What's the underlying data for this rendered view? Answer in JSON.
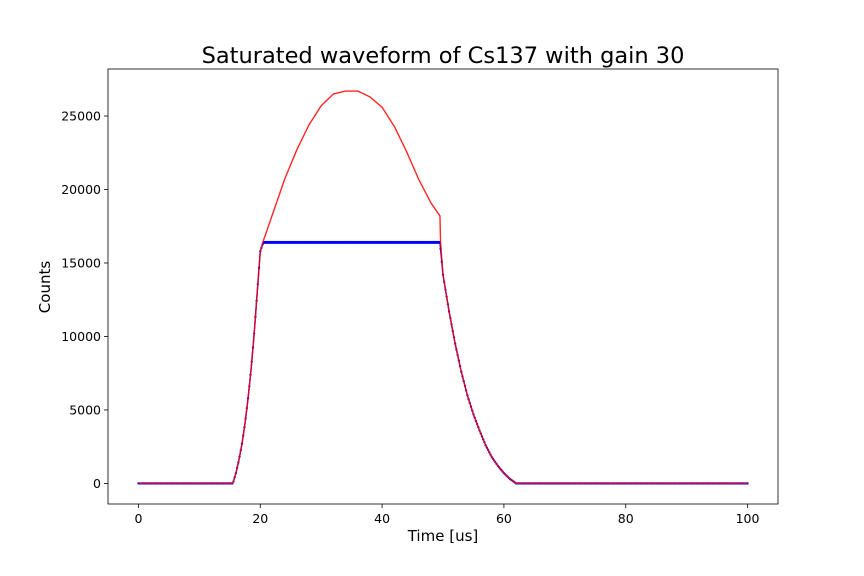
{
  "chart_data": {
    "type": "line",
    "title": "Saturated waveform of Cs137 with gain 30",
    "xlabel": "Time [us]",
    "ylabel": "Counts",
    "xlim": [
      -5,
      105
    ],
    "ylim": [
      -1400,
      28200
    ],
    "xticks": [
      0,
      20,
      40,
      60,
      80,
      100
    ],
    "yticks": [
      0,
      5000,
      10000,
      15000,
      20000,
      25000
    ],
    "grid": false,
    "legend": "none",
    "series": [
      {
        "style": "dotted-markers",
        "color": "#0000ff",
        "saturation_level": 16400,
        "x": [
          0,
          15.5,
          16,
          16.5,
          17,
          17.5,
          18,
          18.5,
          19,
          19.5,
          20,
          20.5,
          25,
          30,
          35,
          40,
          45,
          49.5,
          50,
          51,
          52,
          53,
          54,
          55,
          56,
          57,
          58,
          59,
          60,
          61,
          62,
          70,
          80,
          90,
          100
        ],
        "y": [
          0,
          0,
          700,
          1600,
          2700,
          4100,
          5800,
          7800,
          10200,
          13000,
          15800,
          16400,
          16400,
          16400,
          16400,
          16400,
          16400,
          16400,
          14200,
          11700,
          9500,
          7600,
          6000,
          4700,
          3600,
          2600,
          1800,
          1200,
          700,
          300,
          0,
          0,
          0,
          0,
          0
        ]
      },
      {
        "style": "line",
        "color": "#ff0000",
        "x": [
          0,
          15.5,
          16,
          16.5,
          17,
          17.5,
          18,
          18.5,
          19,
          19.5,
          20,
          20.5,
          22,
          24,
          26,
          28,
          30,
          32,
          34,
          36,
          38,
          40,
          42,
          44,
          46,
          48,
          49.5,
          49.6,
          50,
          51,
          52,
          53,
          54,
          55,
          56,
          57,
          58,
          59,
          60,
          61,
          62,
          70,
          80,
          90,
          100
        ],
        "y": [
          0,
          0,
          700,
          1600,
          2700,
          4100,
          5800,
          7800,
          10200,
          13000,
          15800,
          16500,
          18300,
          20700,
          22700,
          24400,
          25700,
          26500,
          26700,
          26700,
          26300,
          25600,
          24300,
          22600,
          20700,
          19100,
          18200,
          16400,
          14200,
          11700,
          9500,
          7600,
          6000,
          4700,
          3600,
          2600,
          1800,
          1200,
          700,
          300,
          0,
          0,
          0,
          0,
          0
        ]
      }
    ]
  }
}
